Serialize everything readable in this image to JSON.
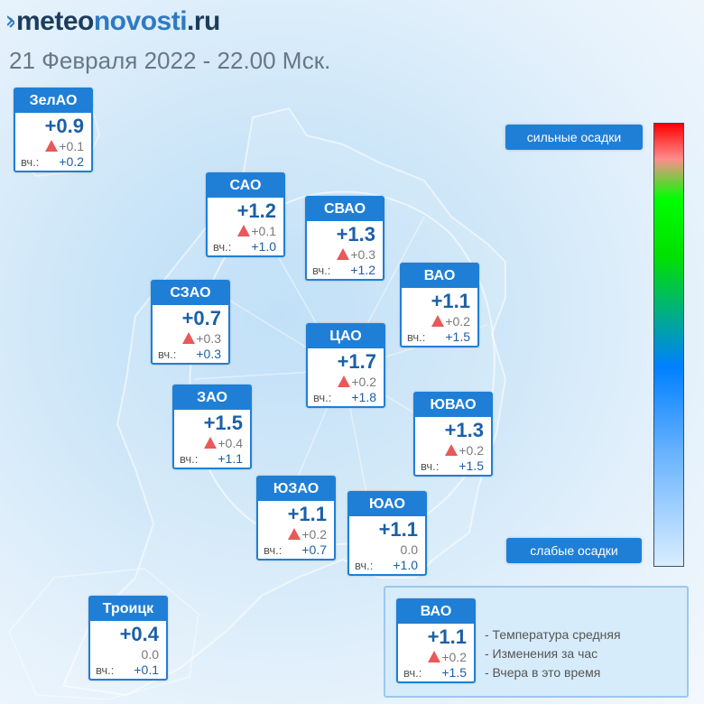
{
  "header": {
    "logo_meteo": "meteo",
    "logo_novosti": "novosti",
    "logo_ru": ".ru",
    "date": "21 Февраля 2022 - 22.00 Мск."
  },
  "legend": {
    "strong": "сильные осадки",
    "weak": "слабые осадки",
    "colors": [
      "#ff0000",
      "#00ff00",
      "#0080ff",
      "#d9edff"
    ]
  },
  "yesterday_label": "вч.:",
  "districts": [
    {
      "name": "ЗелАО",
      "temp": "+0.9",
      "delta": "+0.1",
      "trend": "up",
      "yesterday": "+0.2"
    },
    {
      "name": "САО",
      "temp": "+1.2",
      "delta": "+0.1",
      "trend": "up",
      "yesterday": "+1.0"
    },
    {
      "name": "СВАО",
      "temp": "+1.3",
      "delta": "+0.3",
      "trend": "up",
      "yesterday": "+1.2"
    },
    {
      "name": "ВАО",
      "temp": "+1.1",
      "delta": "+0.2",
      "trend": "up",
      "yesterday": "+1.5"
    },
    {
      "name": "СЗАО",
      "temp": "+0.7",
      "delta": "+0.3",
      "trend": "up",
      "yesterday": "+0.3"
    },
    {
      "name": "ЦАО",
      "temp": "+1.7",
      "delta": "+0.2",
      "trend": "up",
      "yesterday": "+1.8"
    },
    {
      "name": "ЗАО",
      "temp": "+1.5",
      "delta": "+0.4",
      "trend": "up",
      "yesterday": "+1.1"
    },
    {
      "name": "ЮВАО",
      "temp": "+1.3",
      "delta": "+0.2",
      "trend": "up",
      "yesterday": "+1.5"
    },
    {
      "name": "ЮЗАО",
      "temp": "+1.1",
      "delta": "+0.2",
      "trend": "up",
      "yesterday": "+0.7"
    },
    {
      "name": "ЮАО",
      "temp": "+1.1",
      "delta": "0.0",
      "trend": "none",
      "yesterday": "+1.0"
    },
    {
      "name": "Троицк",
      "temp": "+0.4",
      "delta": "0.0",
      "trend": "none",
      "yesterday": "+0.1"
    }
  ],
  "key": {
    "sample": {
      "name": "ВАО",
      "temp": "+1.1",
      "delta": "+0.2",
      "trend": "up",
      "yesterday": "+1.5"
    },
    "items": [
      "- Температура средняя",
      "- Изменения за час",
      "- Вчера в это время"
    ]
  }
}
